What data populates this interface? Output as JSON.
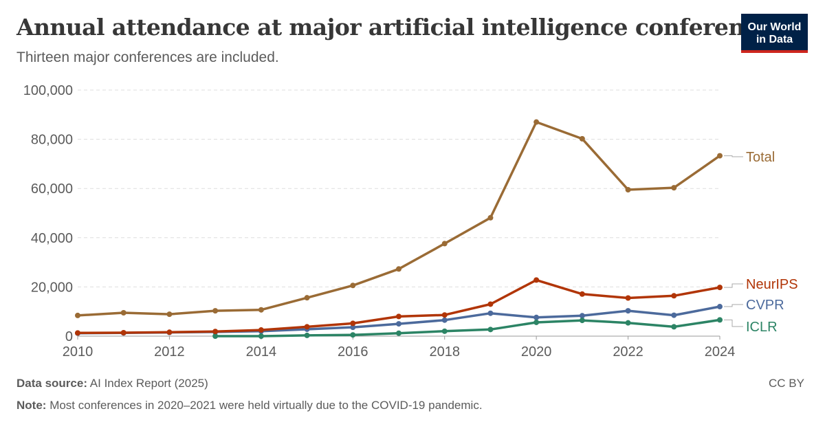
{
  "header": {
    "title": "Annual attendance at major artificial intelligence conferences",
    "subtitle": "Thirteen major conferences are included.",
    "logo_line1": "Our World",
    "logo_line2": "in Data"
  },
  "footer": {
    "source_label": "Data source:",
    "source_text": "AI Index Report (2025)",
    "note_label": "Note:",
    "note_text": "Most conferences in 2020–2021 were held virtually due to the COVID-19 pandemic.",
    "license": "CC BY"
  },
  "chart_data": {
    "type": "line",
    "title": "Annual attendance at major artificial intelligence conferences",
    "subtitle": "Thirteen major conferences are included.",
    "xlim": [
      2010,
      2024
    ],
    "ylim": [
      0,
      100000
    ],
    "x_ticks": [
      2010,
      2012,
      2014,
      2016,
      2018,
      2020,
      2022,
      2024
    ],
    "x_tick_labels": [
      "2010",
      "2012",
      "2014",
      "2016",
      "2018",
      "2020",
      "2022",
      "2024"
    ],
    "y_ticks": [
      0,
      20000,
      40000,
      60000,
      80000,
      100000
    ],
    "y_tick_labels": [
      "0",
      "20,000",
      "40,000",
      "60,000",
      "80,000",
      "100,000"
    ],
    "grid": "horizontal dashed",
    "legend": "inline labels at right end of lines",
    "series": [
      {
        "name": "Total",
        "color": "#9a6b35",
        "x": [
          2010,
          2011,
          2012,
          2013,
          2014,
          2015,
          2016,
          2017,
          2018,
          2019,
          2020,
          2021,
          2022,
          2023,
          2024
        ],
        "values": [
          8400,
          9500,
          8900,
          10300,
          10700,
          15600,
          20600,
          27300,
          37600,
          48100,
          87000,
          80200,
          59500,
          60300,
          73300
        ]
      },
      {
        "name": "NeurIPS",
        "color": "#b13507",
        "x": [
          2010,
          2011,
          2012,
          2013,
          2014,
          2015,
          2016,
          2017,
          2018,
          2019,
          2020,
          2021,
          2022,
          2023,
          2024
        ],
        "values": [
          1300,
          1400,
          1600,
          1900,
          2500,
          3800,
          5200,
          8000,
          8600,
          13000,
          22800,
          17100,
          15500,
          16400,
          19800
        ]
      },
      {
        "name": "CVPR",
        "color": "#4c6a9c",
        "x": [
          2010,
          2011,
          2012,
          2013,
          2014,
          2015,
          2016,
          2017,
          2018,
          2019,
          2020,
          2021,
          2022,
          2023,
          2024
        ],
        "values": [
          1200,
          1300,
          1500,
          1700,
          2000,
          2800,
          3600,
          5000,
          6500,
          9300,
          7600,
          8300,
          10300,
          8500,
          12000
        ]
      },
      {
        "name": "ICLR",
        "color": "#2c8465",
        "x": [
          2013,
          2014,
          2015,
          2016,
          2017,
          2018,
          2019,
          2020,
          2021,
          2022,
          2023,
          2024
        ],
        "values": [
          0,
          0,
          300,
          500,
          1200,
          2000,
          2700,
          5600,
          6400,
          5400,
          3800,
          6600
        ]
      }
    ]
  }
}
